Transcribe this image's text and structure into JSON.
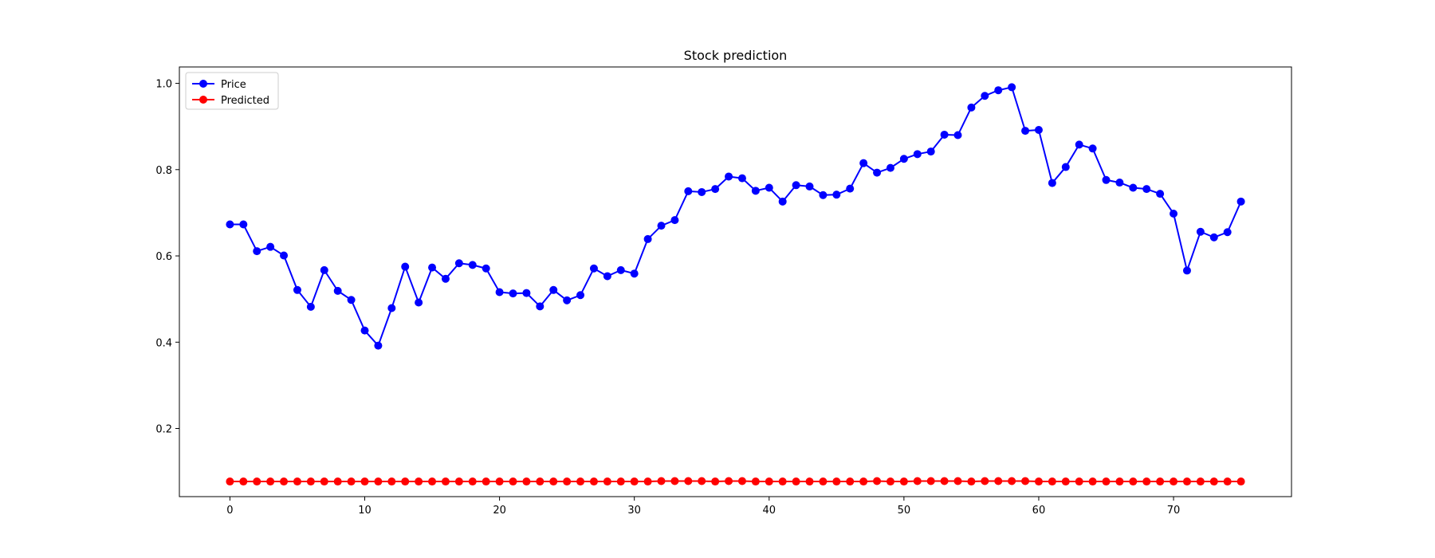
{
  "chart_data": {
    "type": "line",
    "title": "Stock prediction",
    "xlabel": "",
    "ylabel": "",
    "xlim": [
      -3.75,
      78.75
    ],
    "ylim": [
      0.042,
      1.038
    ],
    "x_ticks": [
      0,
      10,
      20,
      30,
      40,
      50,
      60,
      70
    ],
    "y_ticks": [
      0.2,
      0.4,
      0.6,
      0.8,
      1.0
    ],
    "x_tick_labels": [
      "0",
      "10",
      "20",
      "30",
      "40",
      "50",
      "60",
      "70"
    ],
    "y_tick_labels": [
      "0.2",
      "0.4",
      "0.6",
      "0.8",
      "1.0"
    ],
    "grid": false,
    "legend_position": "upper-left",
    "series": [
      {
        "name": "Price",
        "color": "#0000ff",
        "marker": "circle",
        "values": [
          0.673,
          0.673,
          0.611,
          0.621,
          0.601,
          0.521,
          0.482,
          0.567,
          0.519,
          0.498,
          0.427,
          0.392,
          0.479,
          0.575,
          0.492,
          0.573,
          0.547,
          0.583,
          0.579,
          0.571,
          0.516,
          0.513,
          0.514,
          0.483,
          0.521,
          0.497,
          0.509,
          0.571,
          0.553,
          0.567,
          0.559,
          0.639,
          0.67,
          0.683,
          0.75,
          0.748,
          0.755,
          0.784,
          0.78,
          0.751,
          0.758,
          0.726,
          0.764,
          0.761,
          0.741,
          0.742,
          0.756,
          0.815,
          0.793,
          0.804,
          0.825,
          0.836,
          0.842,
          0.881,
          0.88,
          0.944,
          0.971,
          0.984,
          0.991,
          0.89,
          0.892,
          0.769,
          0.806,
          0.858,
          0.849,
          0.776,
          0.77,
          0.758,
          0.755,
          0.744,
          0.698,
          0.566,
          0.656,
          0.643,
          0.655,
          0.726
        ]
      },
      {
        "name": "Predicted",
        "color": "#ff0000",
        "marker": "circle",
        "values": [
          0.077,
          0.077,
          0.077,
          0.077,
          0.077,
          0.077,
          0.077,
          0.077,
          0.077,
          0.077,
          0.077,
          0.077,
          0.077,
          0.077,
          0.077,
          0.077,
          0.077,
          0.077,
          0.077,
          0.077,
          0.077,
          0.077,
          0.077,
          0.077,
          0.077,
          0.077,
          0.077,
          0.077,
          0.077,
          0.077,
          0.077,
          0.077,
          0.078,
          0.078,
          0.078,
          0.078,
          0.077,
          0.078,
          0.078,
          0.077,
          0.077,
          0.077,
          0.077,
          0.077,
          0.077,
          0.077,
          0.077,
          0.077,
          0.078,
          0.077,
          0.077,
          0.078,
          0.078,
          0.078,
          0.078,
          0.077,
          0.078,
          0.078,
          0.078,
          0.078,
          0.077,
          0.077,
          0.077,
          0.077,
          0.077,
          0.077,
          0.077,
          0.077,
          0.077,
          0.077,
          0.077,
          0.077,
          0.077,
          0.077,
          0.077,
          0.077
        ]
      }
    ]
  }
}
